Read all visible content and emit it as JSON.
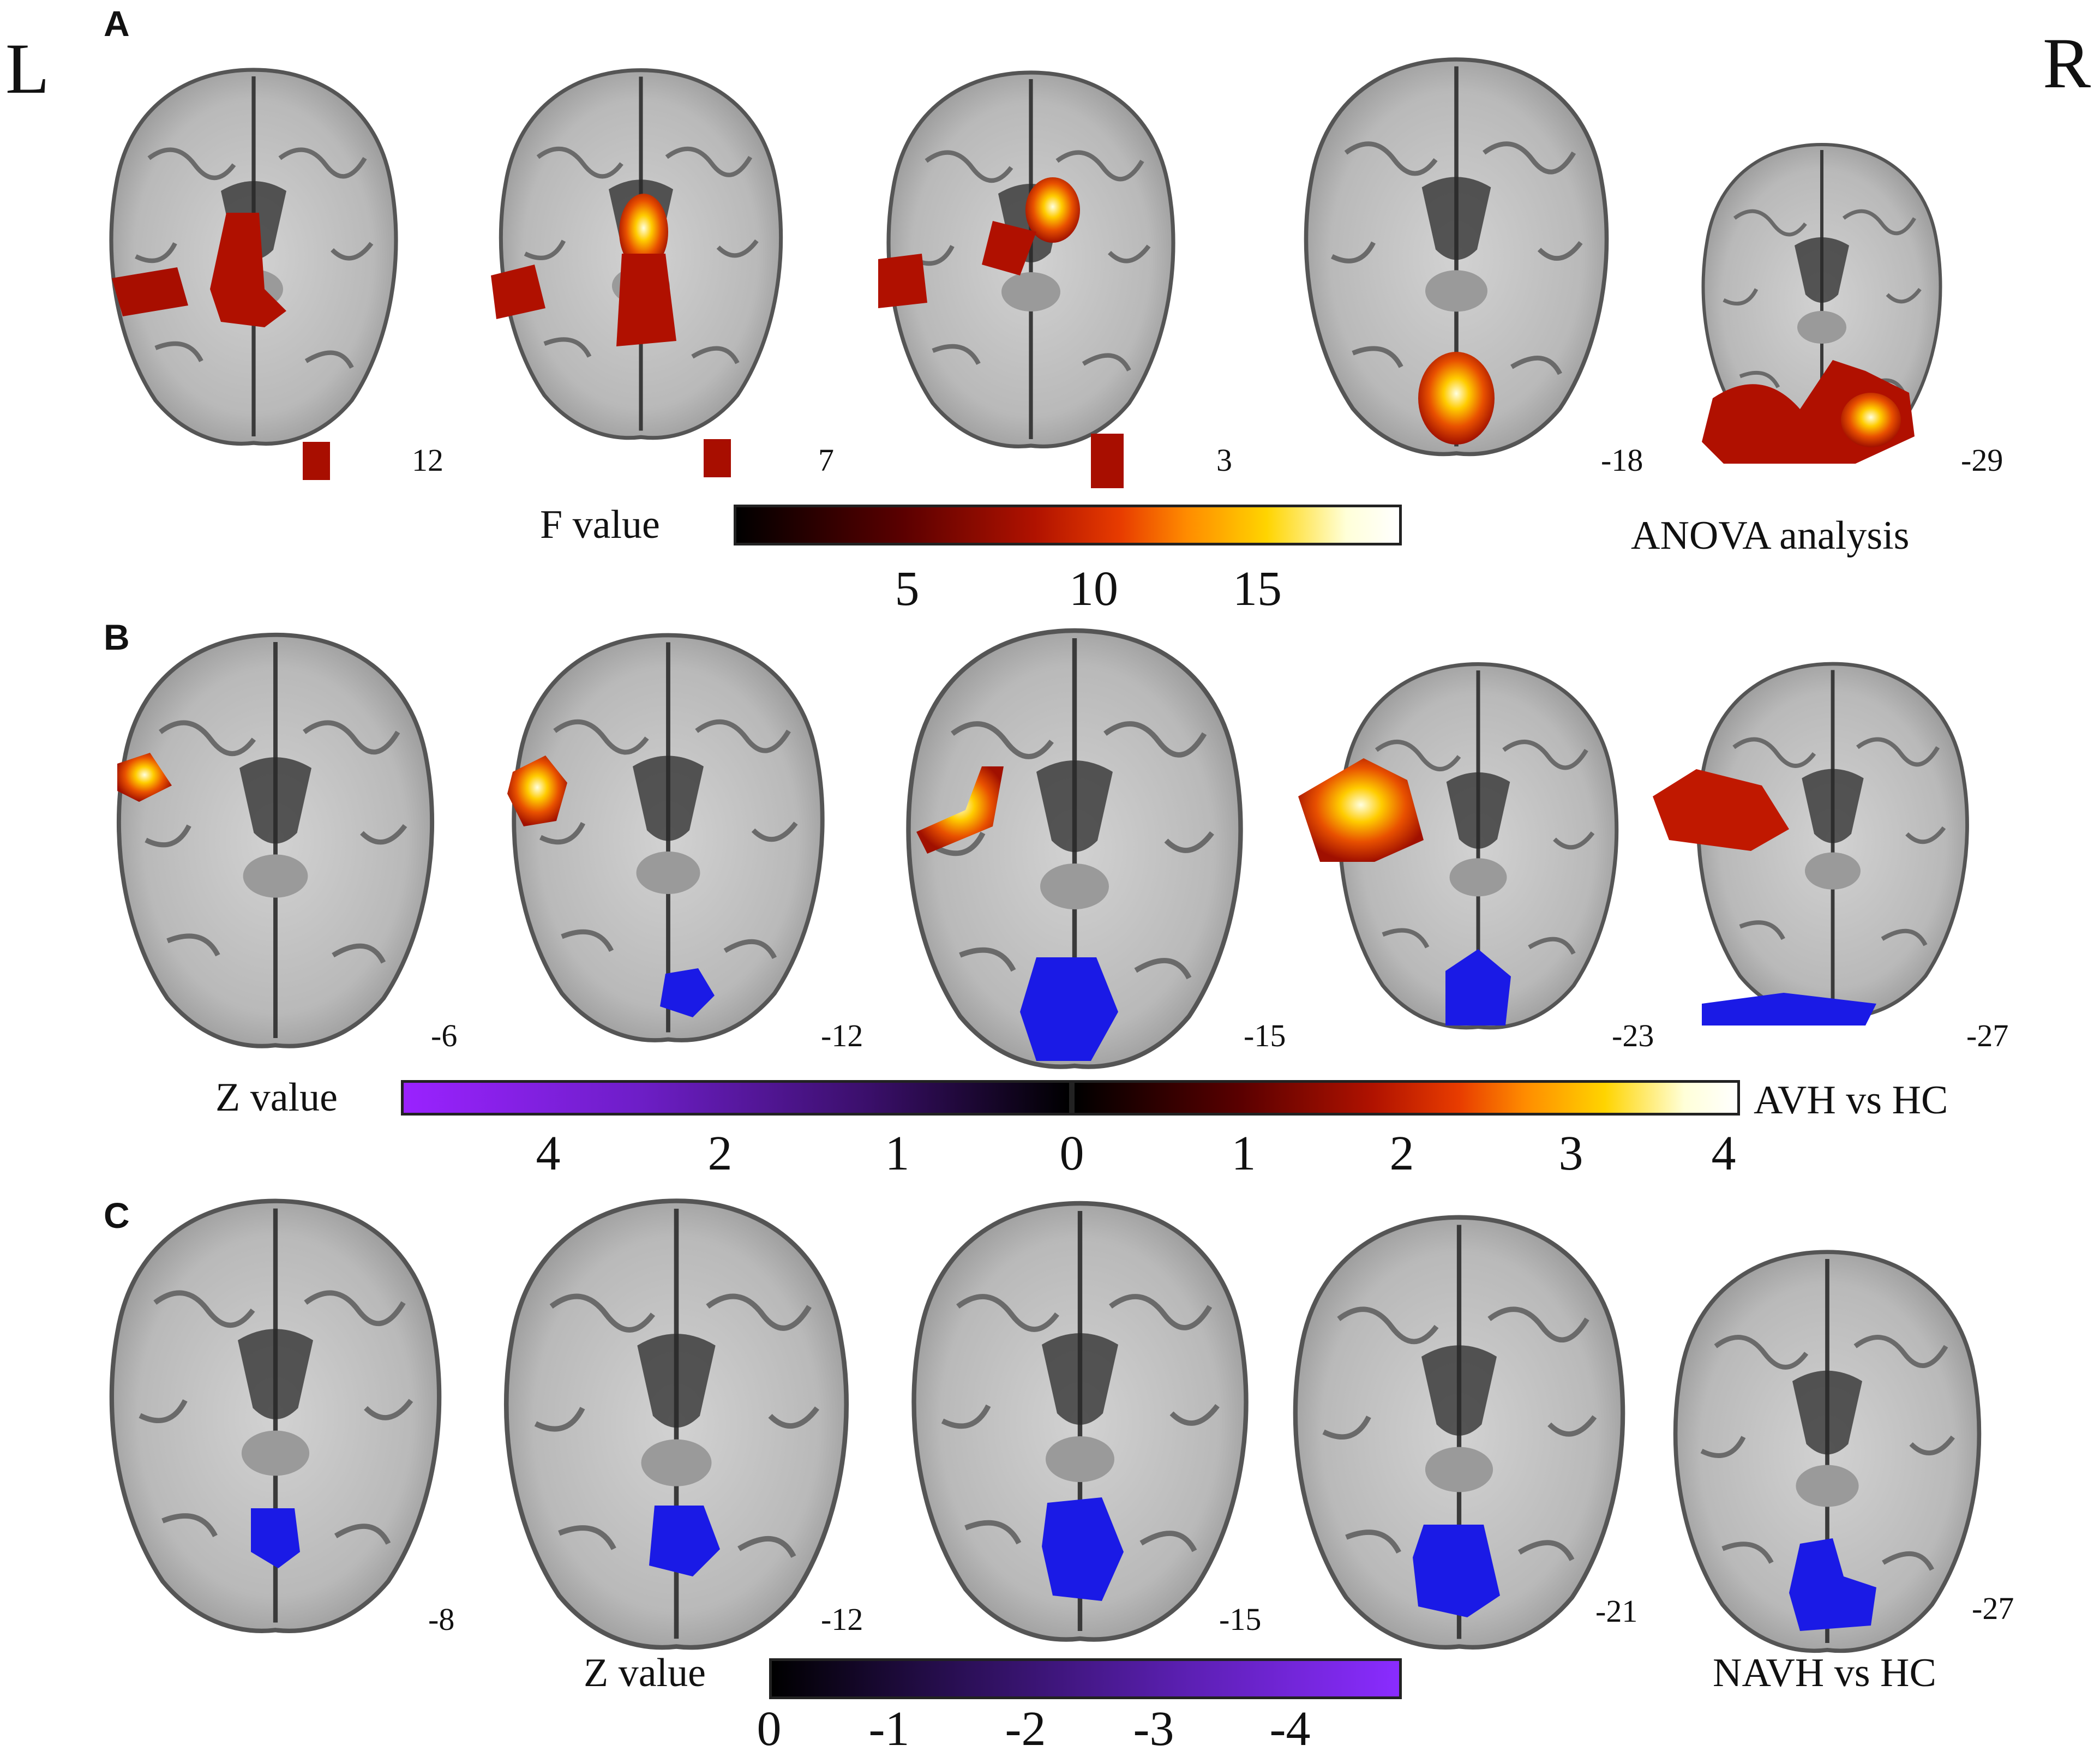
{
  "orientation": {
    "left": "L",
    "right": "R"
  },
  "panels": [
    {
      "letter": "A",
      "slices": [
        "12",
        "7",
        "3",
        "-18",
        "-29"
      ],
      "scale_label": "F value",
      "scale_ticks": [
        "5",
        "10",
        "15"
      ],
      "analysis": "ANOVA analysis"
    },
    {
      "letter": "B",
      "slices": [
        "-6",
        "-12",
        "-15",
        "-23",
        "-27"
      ],
      "scale_label": "Z value",
      "scale_ticks": [
        "4",
        "2",
        "1",
        "0",
        "1",
        "2",
        "3",
        "4"
      ],
      "analysis": "AVH vs HC"
    },
    {
      "letter": "C",
      "slices": [
        "-8",
        "-12",
        "-15",
        "-21",
        "-27"
      ],
      "scale_label": "Z value",
      "scale_ticks": [
        "0",
        "-1",
        "-2",
        "-3",
        "-4"
      ],
      "analysis": "NAVH vs HC"
    }
  ],
  "colors": {
    "hot_scale": [
      "#000000",
      "#5a0000",
      "#b01200",
      "#e83c00",
      "#ff8c00",
      "#ffd400",
      "#ffffd8",
      "#ffffff"
    ],
    "cool_scale_B": [
      "#9a22ff",
      "#6e1ec8",
      "#3a0f6a",
      "#000000"
    ],
    "cool_scale_C": [
      "#000000",
      "#2a0f55",
      "#5a1fb0",
      "#8a2cff"
    ],
    "blue_blob": "#1a1ae6"
  }
}
